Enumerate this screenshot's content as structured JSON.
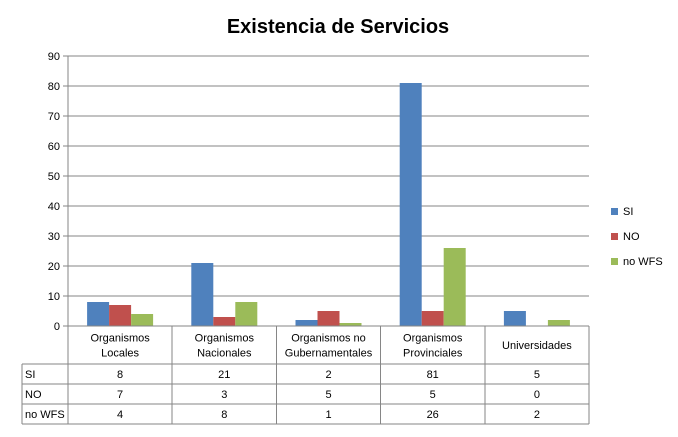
{
  "chart_data": {
    "type": "bar",
    "title": "Existencia de Servicios",
    "categories": [
      [
        "Organismos",
        "Locales"
      ],
      [
        "Organismos",
        "Nacionales"
      ],
      [
        "Organismos no",
        "Gubernamentales"
      ],
      [
        "Organismos",
        "Provinciales"
      ],
      [
        "Universidades"
      ]
    ],
    "series": [
      {
        "name": "SI",
        "color": "#4f81bd",
        "values": [
          8,
          21,
          2,
          81,
          5
        ]
      },
      {
        "name": "NO",
        "color": "#c0504d",
        "values": [
          7,
          3,
          5,
          5,
          0
        ]
      },
      {
        "name": "no WFS",
        "color": "#9bbb59",
        "values": [
          4,
          8,
          1,
          26,
          2
        ]
      }
    ],
    "ylim": [
      0,
      90
    ],
    "yticks": [
      0,
      10,
      20,
      30,
      40,
      50,
      60,
      70,
      80,
      90
    ],
    "grid": true,
    "legend": "right",
    "data_table": true
  }
}
